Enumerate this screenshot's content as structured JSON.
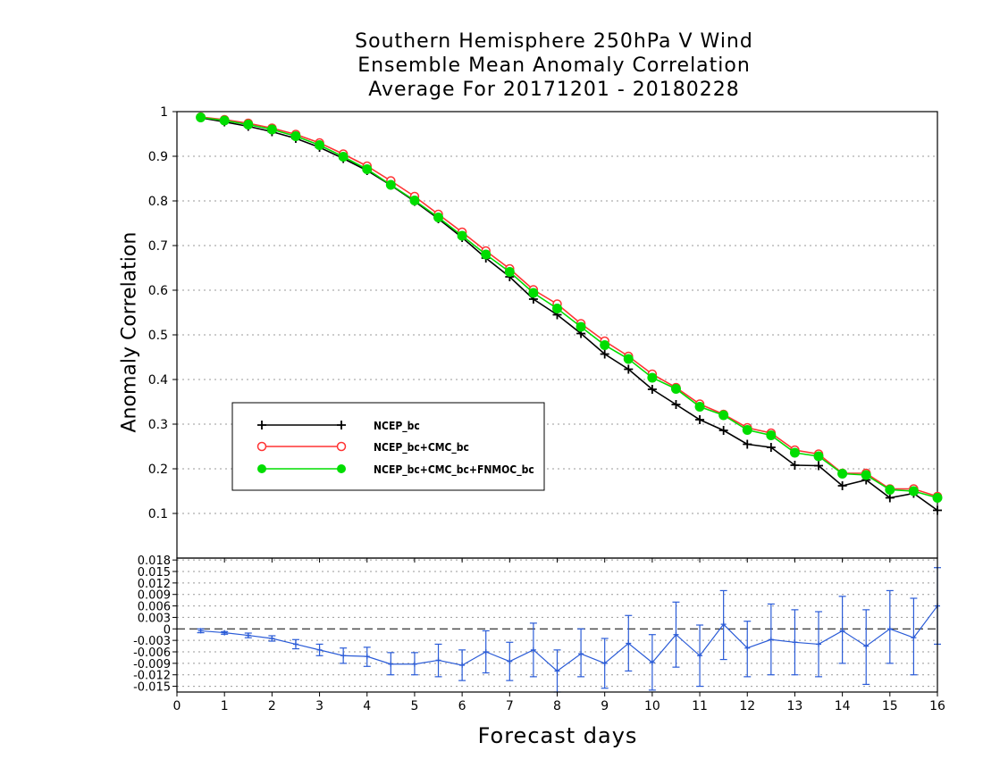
{
  "title_lines": [
    "Southern Hemisphere 250hPa V Wind",
    "Ensemble Mean Anomaly Correlation",
    "Average For 20171201 - 20180228"
  ],
  "colors": {
    "ncep_bc": "#000000",
    "ncep_bc_cmc_bc": "#ff3333",
    "ncep_bc_cmc_bc_fnmoc_bc": "#00dd00",
    "difference": "#2a5bd7",
    "grid": "#999999"
  },
  "chart_data": [
    {
      "type": "line",
      "ylabel": "Anomaly Correlation",
      "xlabel": "",
      "xlim": [
        0,
        16
      ],
      "ylim": [
        0,
        1
      ],
      "yticks": [
        "0.1",
        "0.2",
        "0.3",
        "0.4",
        "0.5",
        "0.6",
        "0.7",
        "0.8",
        "0.9",
        "1"
      ],
      "grid": true,
      "legend_position": "left-middle",
      "x": [
        0.5,
        1,
        1.5,
        2,
        2.5,
        3,
        3.5,
        4,
        4.5,
        5,
        5.5,
        6,
        6.5,
        7,
        7.5,
        8,
        8.5,
        9,
        9.5,
        10,
        10.5,
        11,
        11.5,
        12,
        12.5,
        13,
        13.5,
        14,
        14.5,
        15,
        15.5,
        16
      ],
      "series": [
        {
          "name": "NCEP_bc",
          "marker": "plus",
          "values": [
            0.986,
            0.977,
            0.967,
            0.955,
            0.94,
            0.92,
            0.895,
            0.868,
            0.835,
            0.799,
            0.76,
            0.718,
            0.672,
            0.63,
            0.58,
            0.545,
            0.503,
            0.457,
            0.423,
            0.378,
            0.344,
            0.31,
            0.286,
            0.255,
            0.248,
            0.208,
            0.207,
            0.162,
            0.175,
            0.135,
            0.145,
            0.107
          ]
        },
        {
          "name": "NCEP_bc+CMC_bc",
          "marker": "open-circle",
          "values": [
            0.988,
            0.982,
            0.974,
            0.963,
            0.949,
            0.93,
            0.905,
            0.878,
            0.845,
            0.81,
            0.77,
            0.73,
            0.688,
            0.648,
            0.601,
            0.569,
            0.525,
            0.486,
            0.452,
            0.412,
            0.382,
            0.345,
            0.322,
            0.292,
            0.28,
            0.242,
            0.233,
            0.19,
            0.19,
            0.155,
            0.155,
            0.138
          ]
        },
        {
          "name": "NCEP_bc+CMC_bc+FNMOC_bc",
          "marker": "filled-circle",
          "values": [
            0.987,
            0.98,
            0.971,
            0.96,
            0.945,
            0.925,
            0.899,
            0.871,
            0.836,
            0.801,
            0.763,
            0.722,
            0.68,
            0.641,
            0.594,
            0.559,
            0.518,
            0.477,
            0.446,
            0.404,
            0.379,
            0.339,
            0.32,
            0.287,
            0.275,
            0.236,
            0.228,
            0.189,
            0.186,
            0.153,
            0.15,
            0.135
          ]
        }
      ]
    },
    {
      "type": "line",
      "title": "",
      "xlabel": "Forecast days",
      "xticks": [
        "0",
        "1",
        "2",
        "3",
        "4",
        "5",
        "6",
        "7",
        "8",
        "9",
        "10",
        "11",
        "12",
        "13",
        "14",
        "15",
        "16"
      ],
      "xlim": [
        0,
        16
      ],
      "ylim": [
        -0.0165,
        0.0185
      ],
      "yticks": [
        "-0.015",
        "-0.012",
        "-0.009",
        "-0.006",
        "-0.003",
        "0",
        "0.003",
        "0.006",
        "0.009",
        "0.012",
        "0.015",
        "0.018"
      ],
      "grid": true,
      "zero_line": "dashed",
      "x": [
        0.5,
        1,
        1.5,
        2,
        2.5,
        3,
        3.5,
        4,
        4.5,
        5,
        5.5,
        6,
        6.5,
        7,
        7.5,
        8,
        8.5,
        9,
        9.5,
        10,
        10.5,
        11,
        11.5,
        12,
        12.5,
        13,
        13.5,
        14,
        14.5,
        15,
        15.5,
        16
      ],
      "values": [
        -0.0005,
        -0.001,
        -0.0017,
        -0.0025,
        -0.004,
        -0.0055,
        -0.007,
        -0.0072,
        -0.0092,
        -0.0092,
        -0.0082,
        -0.0095,
        -0.006,
        -0.0085,
        -0.0055,
        -0.011,
        -0.0065,
        -0.009,
        -0.0038,
        -0.0088,
        -0.0015,
        -0.007,
        0.0012,
        -0.005,
        -0.0028,
        -0.0035,
        -0.004,
        -0.0005,
        -0.0045,
        0.0,
        -0.0023,
        0.006
      ],
      "error_low": [
        -0.001,
        -0.0014,
        -0.0023,
        -0.0032,
        -0.0052,
        -0.007,
        -0.009,
        -0.0098,
        -0.012,
        -0.012,
        -0.0125,
        -0.0135,
        -0.0115,
        -0.0135,
        -0.0125,
        -0.0165,
        -0.0125,
        -0.0155,
        -0.011,
        -0.016,
        -0.01,
        -0.015,
        -0.008,
        -0.0125,
        -0.012,
        -0.012,
        -0.0125,
        -0.009,
        -0.0145,
        -0.009,
        -0.012,
        -0.004
      ],
      "error_high": [
        0.0,
        -0.0007,
        -0.0011,
        -0.0018,
        -0.0028,
        -0.004,
        -0.005,
        -0.0048,
        -0.0062,
        -0.0062,
        -0.004,
        -0.0055,
        -0.0005,
        -0.0035,
        0.0015,
        -0.0055,
        0.0,
        -0.0025,
        0.0035,
        -0.0015,
        0.007,
        0.001,
        0.01,
        0.002,
        0.0065,
        0.005,
        0.0045,
        0.0085,
        0.005,
        0.01,
        0.008,
        0.016
      ]
    }
  ]
}
